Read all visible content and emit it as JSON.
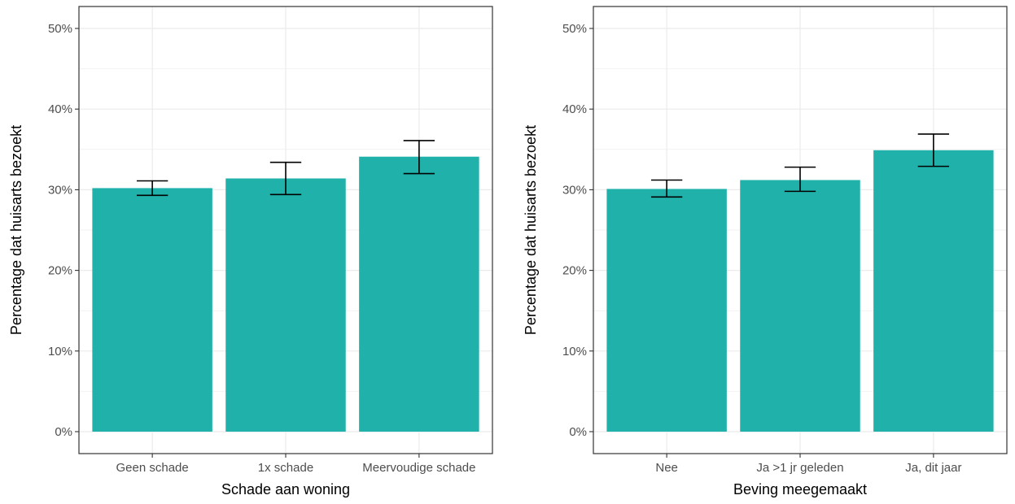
{
  "chart_data": [
    {
      "type": "bar",
      "categories": [
        "Geen schade",
        "1x schade",
        "Meervoudige schade"
      ],
      "values": [
        30.2,
        31.4,
        34.1
      ],
      "error_low": [
        29.3,
        29.4,
        32.0
      ],
      "error_high": [
        31.1,
        33.4,
        36.1
      ],
      "xlabel": "Schade aan woning",
      "ylabel": "Percentage dat huisarts bezoekt",
      "ylim": [
        0,
        52
      ],
      "yticks": [
        0,
        10,
        20,
        30,
        40,
        50
      ],
      "ytick_labels": [
        "0%",
        "10%",
        "20%",
        "30%",
        "40%",
        "50%"
      ],
      "bar_color": "#20B2AA",
      "grid": true
    },
    {
      "type": "bar",
      "categories": [
        "Nee",
        "Ja >1 jr geleden",
        "Ja, dit jaar"
      ],
      "values": [
        30.1,
        31.2,
        34.9
      ],
      "error_low": [
        29.1,
        29.8,
        32.9
      ],
      "error_high": [
        31.2,
        32.8,
        36.9
      ],
      "xlabel": "Beving meegemaakt",
      "ylabel": "Percentage dat huisarts bezoekt",
      "ylim": [
        0,
        52
      ],
      "yticks": [
        0,
        10,
        20,
        30,
        40,
        50
      ],
      "ytick_labels": [
        "0%",
        "10%",
        "20%",
        "30%",
        "40%",
        "50%"
      ],
      "bar_color": "#20B2AA",
      "grid": true
    }
  ]
}
